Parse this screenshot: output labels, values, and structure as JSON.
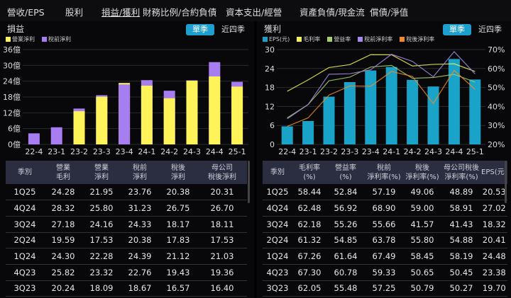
{
  "nav": {
    "tabs": [
      "營收/EPS",
      "股利",
      "損益/獲利",
      "財務比例/合約負債",
      "資本支出/經營",
      "資產負債/現金流",
      "償債/淨值"
    ],
    "active": 2
  },
  "left": {
    "title": "損益",
    "seg_on": "單季",
    "seg_off": "近四季",
    "legend": [
      "營業淨利",
      "稅前淨利"
    ],
    "colors": [
      "#fff35a",
      "#a77ef0"
    ],
    "table": {
      "headers": [
        [
          "季別"
        ],
        [
          "營業",
          "毛利"
        ],
        [
          "營業",
          "淨利"
        ],
        [
          "稅前",
          "淨利"
        ],
        [
          "稅後",
          "淨利"
        ],
        [
          "母公司",
          "稅後淨利"
        ]
      ],
      "rows": [
        [
          "1Q25",
          "24.28",
          "21.95",
          "23.76",
          "20.38",
          "20.31"
        ],
        [
          "4Q24",
          "28.32",
          "25.80",
          "31.23",
          "26.75",
          "26.70"
        ],
        [
          "3Q24",
          "27.18",
          "24.16",
          "24.33",
          "18.17",
          "18.11"
        ],
        [
          "2Q24",
          "19.59",
          "17.53",
          "20.38",
          "17.83",
          "17.53"
        ],
        [
          "1Q24",
          "24.30",
          "22.28",
          "24.39",
          "21.12",
          "21.03"
        ],
        [
          "4Q23",
          "25.82",
          "23.32",
          "22.76",
          "19.43",
          "19.36"
        ],
        [
          "3Q23",
          "20.24",
          "18.09",
          "18.67",
          "16.57",
          "16.40"
        ]
      ]
    }
  },
  "right": {
    "title": "獲利",
    "seg_on": "單季",
    "seg_off": "近四季",
    "legend": [
      "EPS(元)",
      "毛利率",
      "營益率",
      "稅前淨利率",
      "稅後淨利率"
    ],
    "colors": [
      "#1aa3c9",
      "#f4f05a",
      "#a7cf6a",
      "#a58be8",
      "#f08a2a"
    ],
    "table": {
      "headers": [
        [
          "季別"
        ],
        [
          "毛利率",
          "(%)"
        ],
        [
          "營益率",
          "(%)"
        ],
        [
          "稅前",
          "淨利率(%)"
        ],
        [
          "稅後",
          "淨利率(%)"
        ],
        [
          "母公司稅後",
          "淨利率(%)"
        ],
        [
          "EPS(元)"
        ]
      ],
      "rows": [
        [
          "1Q25",
          "58.44",
          "52.84",
          "57.19",
          "49.06",
          "48.89",
          "20.53"
        ],
        [
          "4Q24",
          "62.48",
          "56.92",
          "68.90",
          "59.00",
          "58.91",
          "27.02"
        ],
        [
          "3Q24",
          "62.18",
          "55.26",
          "55.66",
          "41.57",
          "41.43",
          "18.32"
        ],
        [
          "2Q24",
          "61.32",
          "54.85",
          "63.78",
          "55.80",
          "54.88",
          "20.41"
        ],
        [
          "1Q24",
          "67.26",
          "61.64",
          "67.49",
          "58.45",
          "58.19",
          "24.48"
        ],
        [
          "4Q23",
          "67.30",
          "60.78",
          "59.33",
          "50.65",
          "50.45",
          "23.38"
        ],
        [
          "3Q23",
          "62.05",
          "55.48",
          "57.25",
          "50.79",
          "50.27",
          "19.70"
        ]
      ]
    }
  },
  "chart_data": [
    {
      "type": "bar",
      "categories": [
        "22-4",
        "23-1",
        "23-2",
        "23-3",
        "23-4",
        "24-1",
        "24-2",
        "24-3",
        "24-4",
        "25-1"
      ],
      "yticks": [
        "0億",
        "6億",
        "12億",
        "18億",
        "24億",
        "30億",
        "36億"
      ],
      "ylim": [
        0,
        36
      ],
      "grid": true,
      "legend": "top-left",
      "series": [
        {
          "name": "營業淨利",
          "values": [
            null,
            null,
            12.6,
            18.09,
            23.32,
            22.28,
            17.53,
            24.16,
            25.8,
            21.95
          ]
        },
        {
          "name": "稅前淨利",
          "values": [
            4.2,
            6.5,
            13.6,
            18.67,
            22.76,
            24.39,
            20.38,
            24.33,
            31.23,
            23.76
          ]
        }
      ]
    },
    {
      "type": "bar+line",
      "categories": [
        "22-4",
        "23-1",
        "23-2",
        "23-3",
        "23-4",
        "24-1",
        "24-2",
        "24-3",
        "24-4",
        "25-1"
      ],
      "yticks": [
        "0",
        "6",
        "12",
        "18",
        "24",
        "30"
      ],
      "ylim": [
        0,
        30
      ],
      "y2ticks": [
        "20%",
        "30%",
        "40%",
        "50%",
        "60%",
        "70%"
      ],
      "y2lim": [
        20,
        70
      ],
      "grid": true,
      "legend": "top-left",
      "series": [
        {
          "name": "EPS(元)",
          "type": "bar",
          "values": [
            5.7,
            7.4,
            15.1,
            19.7,
            23.38,
            24.48,
            20.41,
            18.32,
            27.02,
            20.53
          ]
        },
        {
          "name": "毛利率",
          "type": "line",
          "values": [
            48,
            54,
            60.5,
            62.05,
            67.3,
            67.26,
            61.32,
            62.18,
            62.48,
            58.44
          ]
        },
        {
          "name": "營益率",
          "type": "line",
          "values": [
            34,
            41,
            53.5,
            55.48,
            60.78,
            61.64,
            54.85,
            55.26,
            56.92,
            52.84
          ]
        },
        {
          "name": "稅前淨利率",
          "type": "line",
          "values": [
            33.5,
            41,
            57,
            57.25,
            59.33,
            67.49,
            63.78,
            55.66,
            68.9,
            57.19
          ]
        },
        {
          "name": "稅後淨利率",
          "type": "line",
          "values": [
            29.5,
            34,
            46,
            50.79,
            50.65,
            58.45,
            55.8,
            41.57,
            59.0,
            49.06
          ]
        }
      ]
    }
  ]
}
